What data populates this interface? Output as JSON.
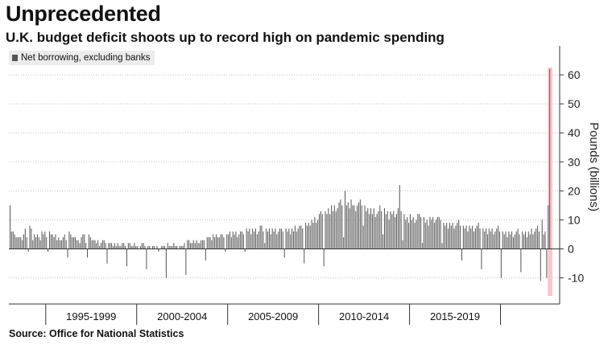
{
  "header": {
    "title": "Unprecedented",
    "subtitle": "U.K. budget deficit shoots up to record high on pandemic spending"
  },
  "footer": {
    "source": "Source: Office for National Statistics"
  },
  "colors": {
    "bar": "#5a5a5a",
    "highlight_bar": "#b3364a",
    "highlight_fill": "#f7c9cf",
    "grid": "#bfbfbf"
  },
  "chart_data": {
    "type": "bar",
    "legend": [
      "Net borrowing, excluding banks"
    ],
    "ylabel": "Pounds (billions)",
    "ylim": [
      -19,
      70
    ],
    "yticks": [
      -10,
      0,
      10,
      20,
      30,
      40,
      50,
      60
    ],
    "ytick_labels": [
      "-10",
      "0",
      "10",
      "20",
      "30",
      "40",
      "50",
      "60"
    ],
    "grid": true,
    "x_start": "1993-01",
    "x_end": "2020-05",
    "period_labels": [
      "1995-1999",
      "2000-2004",
      "2005-2009",
      "2010-2014",
      "2015-2019"
    ],
    "period_boundaries": [
      "1995-01",
      "2000-01",
      "2005-01",
      "2010-01",
      "2015-01",
      "2020-01"
    ],
    "series": [
      {
        "name": "Net borrowing, excluding banks",
        "annual_pattern": [
          [
            1993,
            15,
            6,
            6,
            5,
            4,
            4,
            4,
            4,
            3,
            5,
            7,
            4,
            -1
          ],
          [
            1994,
            8,
            7,
            3,
            5,
            4,
            5,
            4,
            3,
            6,
            5,
            6,
            4,
            -1
          ],
          [
            1995,
            6,
            5,
            5,
            4,
            5,
            3,
            4,
            3,
            3,
            4,
            5,
            3,
            -3
          ],
          [
            1996,
            6,
            5,
            4,
            4,
            4,
            3,
            3,
            2,
            4,
            5,
            5,
            2,
            -3
          ],
          [
            1997,
            5,
            4,
            3,
            3,
            3,
            2,
            3,
            1,
            2,
            3,
            3,
            2,
            -5
          ],
          [
            1998,
            2,
            2,
            2,
            1,
            2,
            1,
            2,
            1,
            1,
            2,
            2,
            1,
            -6
          ],
          [
            1999,
            2,
            2,
            1,
            1,
            2,
            1,
            1,
            0,
            1,
            2,
            2,
            1,
            -7
          ],
          [
            2000,
            1,
            1,
            0,
            1,
            1,
            0,
            1,
            -1,
            0,
            1,
            1,
            1,
            -10
          ],
          [
            2001,
            2,
            1,
            1,
            1,
            2,
            1,
            1,
            0,
            1,
            1,
            1,
            2,
            -9
          ],
          [
            2002,
            3,
            3,
            2,
            2,
            3,
            2,
            3,
            2,
            2,
            3,
            3,
            3,
            -4
          ],
          [
            2003,
            4,
            4,
            4,
            3,
            5,
            4,
            5,
            4,
            4,
            5,
            5,
            4,
            -1
          ],
          [
            2004,
            5,
            5,
            6,
            4,
            6,
            5,
            6,
            4,
            5,
            6,
            6,
            5,
            -1
          ],
          [
            2005,
            7,
            6,
            7,
            5,
            7,
            6,
            7,
            5,
            6,
            8,
            8,
            6,
            2
          ],
          [
            2006,
            7,
            6,
            7,
            5,
            7,
            6,
            7,
            5,
            6,
            7,
            7,
            6,
            -3
          ],
          [
            2007,
            7,
            6,
            7,
            5,
            7,
            6,
            8,
            6,
            7,
            8,
            8,
            7,
            -5
          ],
          [
            2008,
            9,
            8,
            9,
            8,
            10,
            9,
            11,
            9,
            10,
            12,
            13,
            12,
            -6
          ],
          [
            2009,
            13,
            12,
            14,
            12,
            15,
            13,
            15,
            13,
            14,
            16,
            17,
            15,
            4
          ],
          [
            2010,
            20,
            15,
            16,
            14,
            17,
            15,
            15,
            13,
            15,
            16,
            17,
            15,
            8
          ],
          [
            2011,
            15,
            13,
            14,
            12,
            14,
            12,
            14,
            11,
            12,
            13,
            15,
            13,
            5
          ],
          [
            2012,
            14,
            12,
            13,
            10,
            13,
            12,
            13,
            11,
            12,
            14,
            22,
            13,
            3
          ],
          [
            2013,
            12,
            10,
            11,
            9,
            12,
            10,
            11,
            9,
            10,
            12,
            12,
            11,
            2
          ],
          [
            2014,
            11,
            9,
            10,
            8,
            11,
            10,
            11,
            9,
            10,
            11,
            11,
            10,
            2
          ],
          [
            2015,
            9,
            8,
            9,
            7,
            9,
            8,
            9,
            7,
            8,
            9,
            10,
            8,
            -4
          ],
          [
            2016,
            8,
            7,
            8,
            6,
            8,
            7,
            8,
            6,
            7,
            8,
            9,
            7,
            -7
          ],
          [
            2017,
            7,
            6,
            7,
            5,
            7,
            6,
            7,
            5,
            6,
            7,
            8,
            6,
            -10
          ],
          [
            2018,
            6,
            5,
            6,
            4,
            6,
            5,
            6,
            4,
            5,
            6,
            7,
            5,
            -8
          ],
          [
            2019,
            6,
            5,
            6,
            4,
            6,
            5,
            7,
            5,
            6,
            7,
            8,
            6,
            -11
          ],
          [
            2020,
            10,
            5,
            6,
            -10,
            15,
            62
          ]
        ],
        "note": "Each row lists the year followed by its monthly values in order; rows are read continuously from 1993-01."
      }
    ]
  }
}
